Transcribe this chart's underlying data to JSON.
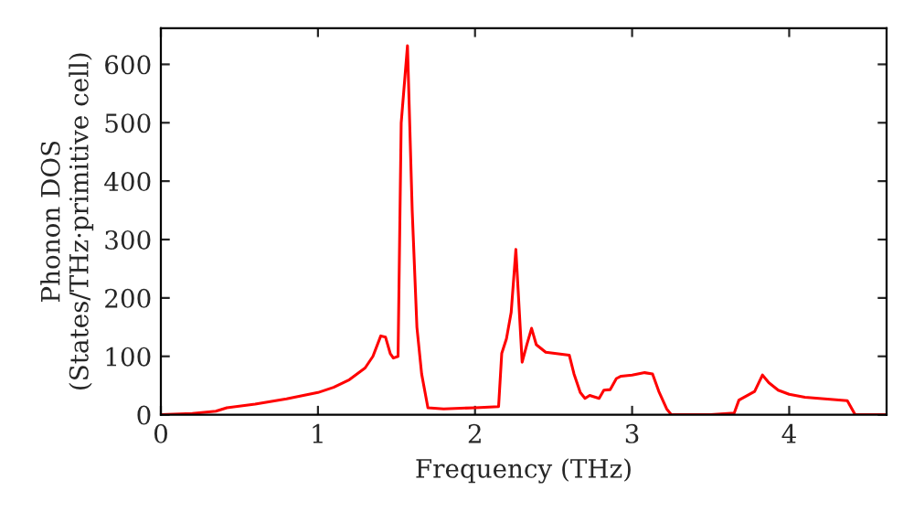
{
  "chart_data": {
    "type": "line",
    "xlabel": "Frequency (THz)",
    "ylabel": "Phonon DOS\n(States/THz·primitive cell)",
    "x": [
      0,
      0.2,
      0.35,
      0.42,
      0.6,
      0.8,
      1.0,
      1.1,
      1.2,
      1.3,
      1.35,
      1.4,
      1.43,
      1.46,
      1.48,
      1.51,
      1.53,
      1.57,
      1.6,
      1.63,
      1.66,
      1.7,
      1.8,
      2.0,
      2.15,
      2.17,
      2.2,
      2.23,
      2.26,
      2.3,
      2.33,
      2.36,
      2.39,
      2.45,
      2.6,
      2.63,
      2.67,
      2.7,
      2.73,
      2.79,
      2.82,
      2.86,
      2.9,
      2.93,
      3.0,
      3.08,
      3.13,
      3.17,
      3.22,
      3.25,
      3.5,
      3.65,
      3.68,
      3.78,
      3.83,
      3.87,
      3.93,
      4.0,
      4.1,
      4.37,
      4.42,
      4.62
    ],
    "series": [
      {
        "color": "#ff0000",
        "values": [
          0,
          2,
          6,
          12,
          18,
          27,
          38,
          47,
          60,
          80,
          100,
          135,
          133,
          105,
          97,
          100,
          500,
          632,
          350,
          150,
          70,
          12,
          10,
          12,
          14,
          105,
          130,
          175,
          283,
          90,
          120,
          148,
          120,
          107,
          102,
          70,
          38,
          28,
          33,
          28,
          42,
          43,
          62,
          66,
          68,
          72,
          70,
          40,
          10,
          0,
          0,
          3,
          25,
          40,
          68,
          55,
          42,
          35,
          30,
          24,
          0,
          0
        ]
      }
    ],
    "xlim": [
      0,
      4.62
    ],
    "ylim": [
      0,
      662
    ],
    "xticks": [
      0,
      1,
      2,
      3,
      4
    ],
    "yticks": [
      0,
      100,
      200,
      300,
      400,
      500,
      600
    ],
    "grid": false,
    "legend": false
  }
}
